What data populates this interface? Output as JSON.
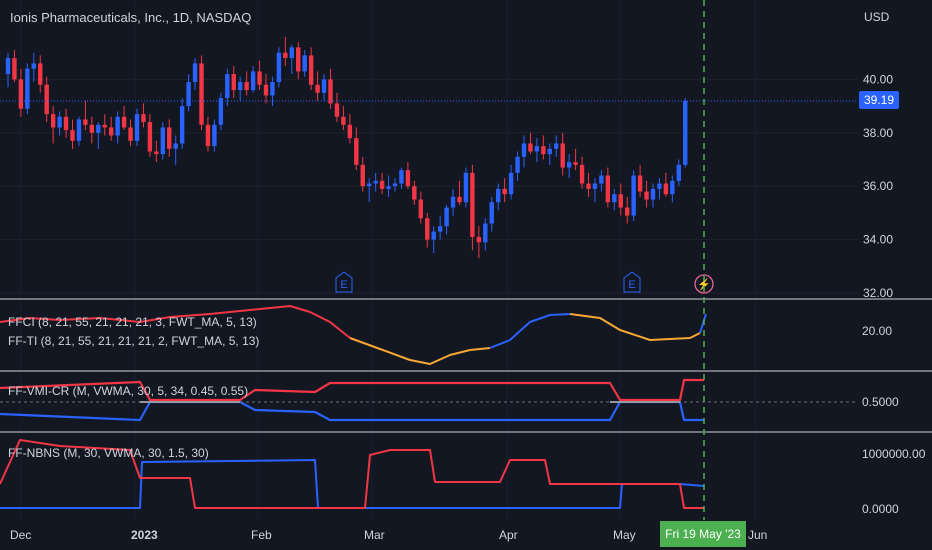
{
  "header": {
    "title": "Ionis Pharmaceuticals, Inc., 1D, NASDAQ",
    "currency": "USD"
  },
  "price_axis": {
    "ticks": [
      {
        "label": "40.00",
        "value": 40
      },
      {
        "label": "38.00",
        "value": 38
      },
      {
        "label": "36.00",
        "value": 36
      },
      {
        "label": "34.00",
        "value": 34
      },
      {
        "label": "32.00",
        "value": 32
      }
    ],
    "last_price_label": "39.19",
    "last_price": 39.19
  },
  "indicators": [
    {
      "label": "FFCI (8, 21, 55, 21, 21, 21, 3, FWT_MA, 5, 13)",
      "tick": "20.00"
    },
    {
      "label": "FF-TI (8, 21, 55, 21, 21, 21, 2, FWT_MA, 5, 13)"
    },
    {
      "label": "FF-VMI-CR (M, VWMA, 30, 5, 34, 0.45, 0.55)",
      "tick": "0.5000"
    },
    {
      "label": "FF-NBNS (M, 30, VWMA, 30, 1.5, 30)",
      "ticks": [
        "1000000.00",
        "0.0000"
      ]
    }
  ],
  "time_axis": {
    "labels": [
      "Dec",
      "2023",
      "Feb",
      "Mar",
      "Apr",
      "May",
      "Jun"
    ],
    "highlight": "Fri 19 May '23"
  },
  "events": [
    {
      "label": "E"
    },
    {
      "label": "E"
    },
    {
      "label": "⚡"
    }
  ],
  "colors": {
    "background": "#131722",
    "up": "#2962ff",
    "down": "#f23645",
    "orange": "#f7a733",
    "grey": "#9598a1",
    "green": "#4caf50"
  },
  "chart_data": {
    "type": "candlestick",
    "ylim": [
      32,
      41.5
    ],
    "last_close": 39.19,
    "candles": [
      [
        40.2,
        41.0,
        39.7,
        40.8
      ],
      [
        40.8,
        41.1,
        39.9,
        40.0
      ],
      [
        40.0,
        40.4,
        38.6,
        38.9
      ],
      [
        38.9,
        40.6,
        38.7,
        40.4
      ],
      [
        40.4,
        41.0,
        39.9,
        40.6
      ],
      [
        40.6,
        40.9,
        39.5,
        39.8
      ],
      [
        39.8,
        40.1,
        38.4,
        38.7
      ],
      [
        38.7,
        39.0,
        37.6,
        38.2
      ],
      [
        38.2,
        38.8,
        37.9,
        38.6
      ],
      [
        38.6,
        38.9,
        37.8,
        38.1
      ],
      [
        38.1,
        38.5,
        37.4,
        37.7
      ],
      [
        37.7,
        38.6,
        37.5,
        38.5
      ],
      [
        38.5,
        39.2,
        38.1,
        38.3
      ],
      [
        38.3,
        38.6,
        37.6,
        38.0
      ],
      [
        38.0,
        38.4,
        37.4,
        38.3
      ],
      [
        38.3,
        38.7,
        37.9,
        38.2
      ],
      [
        38.2,
        38.6,
        37.7,
        37.9
      ],
      [
        37.9,
        38.8,
        37.6,
        38.6
      ],
      [
        38.6,
        39.0,
        38.1,
        38.2
      ],
      [
        38.2,
        38.5,
        37.5,
        37.7
      ],
      [
        37.7,
        38.9,
        37.5,
        38.7
      ],
      [
        38.7,
        39.1,
        38.2,
        38.4
      ],
      [
        38.4,
        38.7,
        37.1,
        37.3
      ],
      [
        37.3,
        37.7,
        36.9,
        37.2
      ],
      [
        37.2,
        38.4,
        37.0,
        38.2
      ],
      [
        38.2,
        38.5,
        37.1,
        37.4
      ],
      [
        37.4,
        37.9,
        36.8,
        37.6
      ],
      [
        37.6,
        39.3,
        37.4,
        39.0
      ],
      [
        39.0,
        40.2,
        38.8,
        39.9
      ],
      [
        39.9,
        40.8,
        39.6,
        40.6
      ],
      [
        40.6,
        40.9,
        38.1,
        38.3
      ],
      [
        38.3,
        38.6,
        37.3,
        37.5
      ],
      [
        37.5,
        38.5,
        37.3,
        38.3
      ],
      [
        38.3,
        39.5,
        38.1,
        39.3
      ],
      [
        39.3,
        40.4,
        39.0,
        40.2
      ],
      [
        40.2,
        40.5,
        39.3,
        39.6
      ],
      [
        39.6,
        40.1,
        39.2,
        39.9
      ],
      [
        39.9,
        40.3,
        39.4,
        39.6
      ],
      [
        39.6,
        40.5,
        39.5,
        40.3
      ],
      [
        40.3,
        40.7,
        39.6,
        39.8
      ],
      [
        39.8,
        40.2,
        39.1,
        39.4
      ],
      [
        39.4,
        40.1,
        39.0,
        39.9
      ],
      [
        39.9,
        41.2,
        39.7,
        41.0
      ],
      [
        41.0,
        41.6,
        40.5,
        40.8
      ],
      [
        40.8,
        41.3,
        40.2,
        41.2
      ],
      [
        41.2,
        41.4,
        40.0,
        40.3
      ],
      [
        40.3,
        41.1,
        40.1,
        40.9
      ],
      [
        40.9,
        41.2,
        39.6,
        39.8
      ],
      [
        39.8,
        40.3,
        39.2,
        39.5
      ],
      [
        39.5,
        40.2,
        39.2,
        40.0
      ],
      [
        40.0,
        40.4,
        38.9,
        39.1
      ],
      [
        39.1,
        39.5,
        38.4,
        38.6
      ],
      [
        38.6,
        39.0,
        38.1,
        38.3
      ],
      [
        38.3,
        38.7,
        37.6,
        37.8
      ],
      [
        37.8,
        38.2,
        36.6,
        36.8
      ],
      [
        36.8,
        37.1,
        35.8,
        36.0
      ],
      [
        36.0,
        36.3,
        35.4,
        36.1
      ],
      [
        36.1,
        36.5,
        35.8,
        36.2
      ],
      [
        36.2,
        36.5,
        35.7,
        35.9
      ],
      [
        35.9,
        36.4,
        35.6,
        36.0
      ],
      [
        36.0,
        36.3,
        35.8,
        36.1
      ],
      [
        36.1,
        36.7,
        35.9,
        36.6
      ],
      [
        36.6,
        36.9,
        35.9,
        36.0
      ],
      [
        36.0,
        36.2,
        35.3,
        35.5
      ],
      [
        35.5,
        35.8,
        34.6,
        34.8
      ],
      [
        34.8,
        35.0,
        33.7,
        34.0
      ],
      [
        34.0,
        34.5,
        33.5,
        34.3
      ],
      [
        34.3,
        34.9,
        34.0,
        34.5
      ],
      [
        34.5,
        35.3,
        34.2,
        35.2
      ],
      [
        35.2,
        35.9,
        34.9,
        35.6
      ],
      [
        35.6,
        36.2,
        35.3,
        35.4
      ],
      [
        35.4,
        36.7,
        35.2,
        36.5
      ],
      [
        36.5,
        36.8,
        33.6,
        34.1
      ],
      [
        34.1,
        34.5,
        33.3,
        33.9
      ],
      [
        33.9,
        34.8,
        33.6,
        34.6
      ],
      [
        34.6,
        35.6,
        34.3,
        35.4
      ],
      [
        35.4,
        36.1,
        35.1,
        35.9
      ],
      [
        35.9,
        36.3,
        35.4,
        35.7
      ],
      [
        35.7,
        36.8,
        35.5,
        36.5
      ],
      [
        36.5,
        37.3,
        36.2,
        37.1
      ],
      [
        37.1,
        37.9,
        36.7,
        37.6
      ],
      [
        37.6,
        38.0,
        37.2,
        37.3
      ],
      [
        37.3,
        37.8,
        36.9,
        37.5
      ],
      [
        37.5,
        37.9,
        37.0,
        37.2
      ],
      [
        37.2,
        37.6,
        36.8,
        37.4
      ],
      [
        37.4,
        37.9,
        37.1,
        37.6
      ],
      [
        37.6,
        38.0,
        36.4,
        36.7
      ],
      [
        36.7,
        37.2,
        36.3,
        36.9
      ],
      [
        36.9,
        37.4,
        36.6,
        36.8
      ],
      [
        36.8,
        37.1,
        35.9,
        36.1
      ],
      [
        36.1,
        36.5,
        35.6,
        35.9
      ],
      [
        35.9,
        36.3,
        35.4,
        36.1
      ],
      [
        36.1,
        36.6,
        35.8,
        36.4
      ],
      [
        36.4,
        36.7,
        35.2,
        35.4
      ],
      [
        35.4,
        35.9,
        35.1,
        35.7
      ],
      [
        35.7,
        36.1,
        34.9,
        35.2
      ],
      [
        35.2,
        35.6,
        34.6,
        34.9
      ],
      [
        34.9,
        36.6,
        34.7,
        36.4
      ],
      [
        36.4,
        36.8,
        35.6,
        35.8
      ],
      [
        35.8,
        36.2,
        35.2,
        35.5
      ],
      [
        35.5,
        36.1,
        35.2,
        35.9
      ],
      [
        35.9,
        36.3,
        35.5,
        36.1
      ],
      [
        36.1,
        36.5,
        35.6,
        35.7
      ],
      [
        35.7,
        36.4,
        35.4,
        36.2
      ],
      [
        36.2,
        37.0,
        36.0,
        36.8
      ],
      [
        36.8,
        39.3,
        36.7,
        39.19
      ]
    ]
  }
}
